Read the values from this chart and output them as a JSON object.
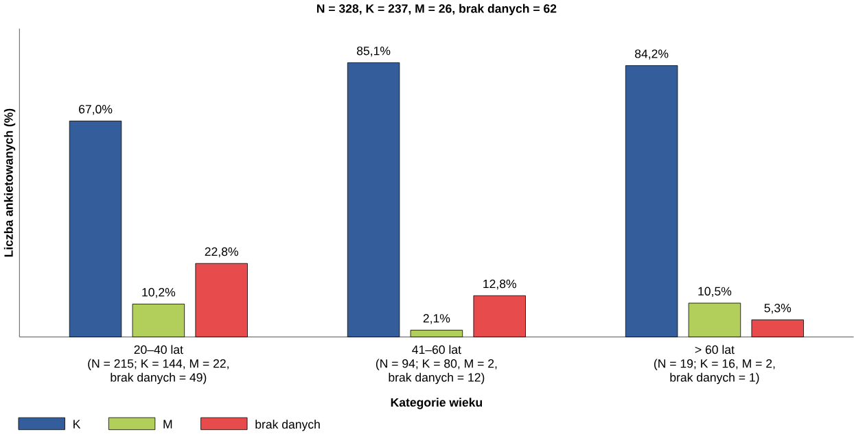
{
  "chart_data": {
    "type": "bar",
    "title": "N = 328, K = 237, M = 26, brak danych = 62",
    "xlabel": "Kategorie wieku",
    "ylabel": "Liczba ankietowanych (%)",
    "categories": [
      "20–40 lat\n(N = 215; K = 144, M = 22,\nbrak danych = 49)",
      "41–60 lat\n(N = 94; K = 80, M = 2,\nbrak danych = 12)",
      ">  60 lat\n(N = 19; K = 16, M = 2,\nbrak danych = 1)"
    ],
    "series": [
      {
        "name": "K",
        "color": "#345e9b",
        "values": [
          67.0,
          85.1,
          84.2
        ],
        "value_labels": [
          "67,0%",
          "85,1%",
          "84,2%"
        ]
      },
      {
        "name": "M",
        "color": "#b2cf5b",
        "values": [
          10.2,
          2.1,
          10.5
        ],
        "value_labels": [
          "10,2%",
          "2,1%",
          "10,5%"
        ]
      },
      {
        "name": "brak danych",
        "color": "#e84b4b",
        "values": [
          22.8,
          12.8,
          5.3
        ],
        "value_labels": [
          "22,8%",
          "12,8%",
          "5,3%"
        ]
      }
    ],
    "legend": "bottom left"
  }
}
